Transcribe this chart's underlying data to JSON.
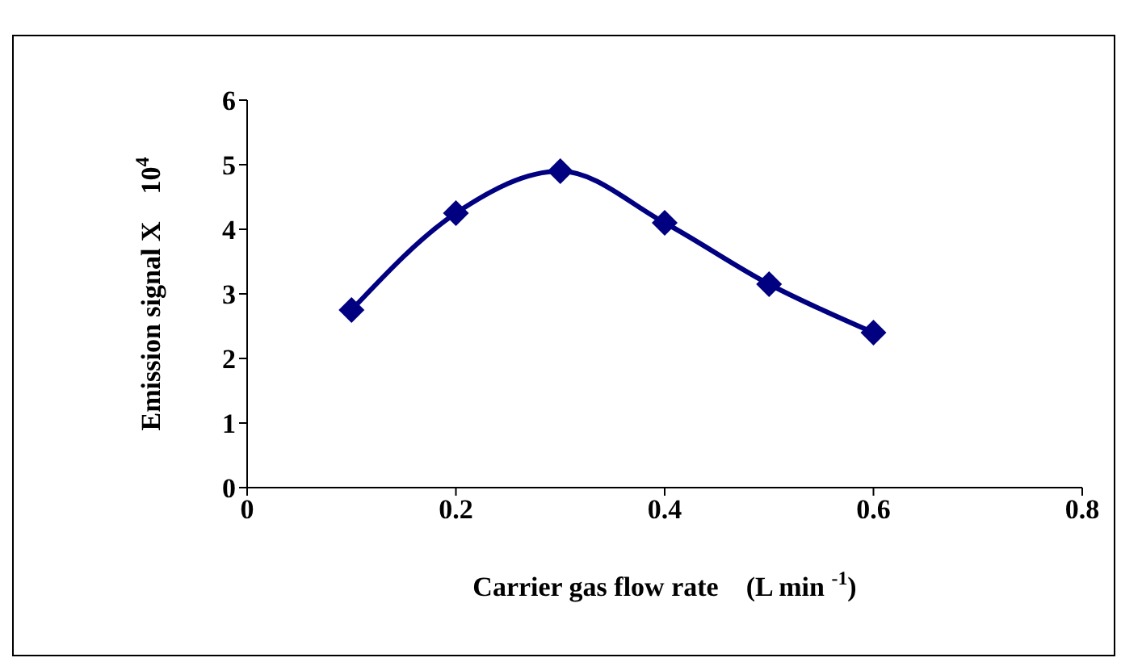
{
  "chart_data": {
    "type": "line",
    "xlabel": "Carrier gas flow rate    (L min $^{-1}$)",
    "ylabel": "Emission signal X    10$^{4}$",
    "x": [
      0.1,
      0.2,
      0.3,
      0.4,
      0.5,
      0.6
    ],
    "series": [
      {
        "color": "#000080",
        "values": [
          2.75,
          4.25,
          4.9,
          4.1,
          3.15,
          2.4
        ]
      }
    ],
    "xlim": [
      0,
      0.8
    ],
    "xticks": [
      0,
      0.2,
      0.4,
      0.6,
      0.8
    ],
    "ylim": [
      0,
      6
    ],
    "yticks": [
      0,
      1,
      2,
      3,
      4,
      5,
      6
    ],
    "grid": false,
    "legend": false,
    "marker": "diamond",
    "line_style": "solid"
  }
}
